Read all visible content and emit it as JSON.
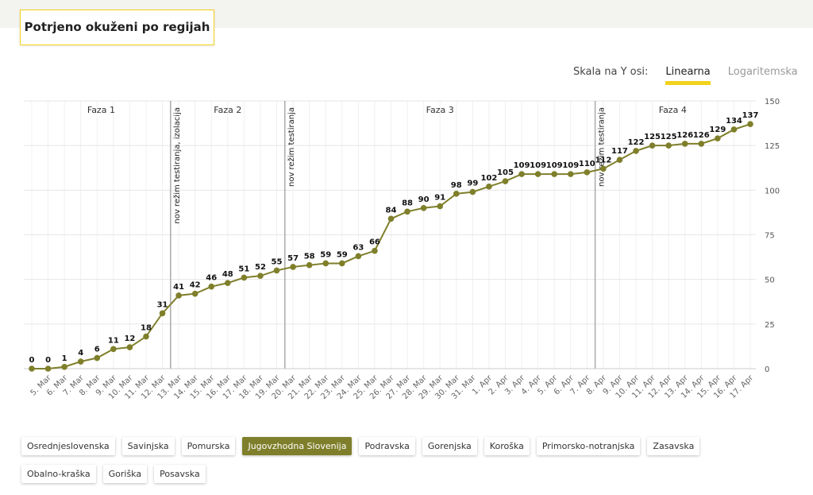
{
  "header": {
    "title": "Potrjeno okuženi po regijah"
  },
  "scale_toggle": {
    "label": "Skala na Y osi:",
    "options": [
      "Linearna",
      "Logaritemska"
    ],
    "active": 0
  },
  "regions": {
    "options": [
      "Osrednjeslovenska",
      "Savinjska",
      "Pomurska",
      "Jugovzhodna Slovenija",
      "Podravska",
      "Gorenjska",
      "Koroška",
      "Primorsko-notranjska",
      "Zasavska",
      "Obalno-kraška",
      "Goriška",
      "Posavska"
    ],
    "active": 3
  },
  "chart_data": {
    "type": "line",
    "log": false,
    "grid": true,
    "color": "#7f7f2b",
    "categories": [
      null,
      "5. Mar",
      "6. Mar",
      "7. Mar",
      "8. Mar",
      "9. Mar",
      "10. Mar",
      "11. Mar",
      "12. Mar",
      "13. Mar",
      "14. Mar",
      "15. Mar",
      "16. Mar",
      "17. Mar",
      "18. Mar",
      "19. Mar",
      "20. Mar",
      "21. Mar",
      "22. Mar",
      "23. Mar",
      "24. Mar",
      "25. Mar",
      "26. Mar",
      "27. Mar",
      "28. Mar",
      "29. Mar",
      "30. Mar",
      "31. Mar",
      "1. Apr",
      "2. Apr",
      "3. Apr",
      "4. Apr",
      "5. Apr",
      "6. Apr",
      "7. Apr",
      "8. Apr",
      "9. Apr",
      "10. Apr",
      "11. Apr",
      "12. Apr",
      "13. Apr",
      "14. Apr",
      "15. Apr",
      "16. Apr",
      "17. Apr"
    ],
    "values": [
      0,
      0,
      1,
      4,
      6,
      11,
      12,
      18,
      31,
      41,
      42,
      46,
      48,
      51,
      52,
      55,
      57,
      58,
      59,
      59,
      63,
      66,
      84,
      88,
      90,
      91,
      98,
      99,
      102,
      105,
      109,
      109,
      109,
      109,
      110,
      112,
      117,
      122,
      125,
      125,
      126,
      126,
      129,
      134,
      137
    ],
    "ylim": [
      0,
      150
    ],
    "yticks": [
      0,
      25,
      50,
      75,
      100,
      125,
      150
    ],
    "plot_lines": [
      {
        "value": 8.5,
        "label": "nov režim testiranja, izolacija"
      },
      {
        "value": 15.5,
        "label": "nov režim testiranja"
      },
      {
        "value": 34.5,
        "label": "nov režim testiranja"
      }
    ],
    "plot_bands": [
      {
        "from": 0,
        "to": 8.5,
        "label": "Faza 1"
      },
      {
        "from": 8.5,
        "to": 15.5,
        "label": "Faza 2"
      },
      {
        "from": 15.5,
        "to": 34.5,
        "label": "Faza 3"
      },
      {
        "from": 34.5,
        "to": 44,
        "label": "Faza 4"
      }
    ]
  }
}
